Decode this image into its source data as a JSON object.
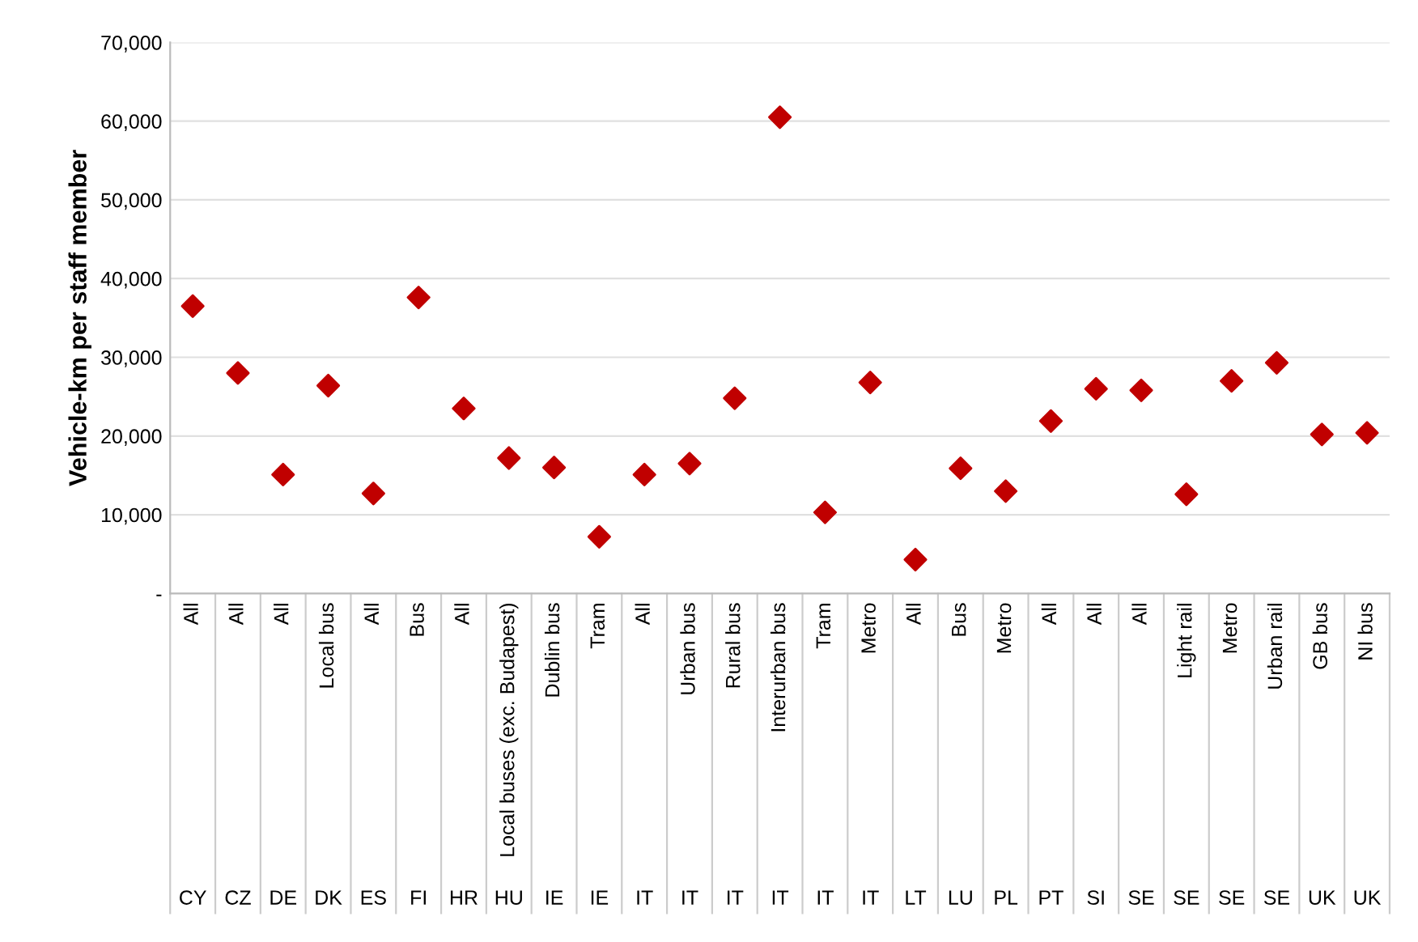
{
  "chart_data": {
    "type": "scatter",
    "ylabel": "Vehicle-km per staff member",
    "categories": [
      "All",
      "All",
      "All",
      "Local bus",
      "All",
      "Bus",
      "All",
      "Local buses (exc. Budapest)",
      "Dublin bus",
      "Tram",
      "All",
      "Urban bus",
      "Rural bus",
      "Interurban bus",
      "Tram",
      "Metro",
      "All",
      "Bus",
      "Metro",
      "All",
      "All",
      "All",
      "Light rail",
      "Metro",
      "Urban rail",
      "GB bus",
      "NI bus"
    ],
    "series": [
      {
        "color": "#c00000",
        "values": [
          36500,
          28000,
          15100,
          26400,
          12700,
          37600,
          23500,
          17200,
          16000,
          7200,
          15100,
          16500,
          24800,
          60500,
          10300,
          26800,
          4300,
          15900,
          13000,
          21900,
          26000,
          25800,
          12600,
          27000,
          29300,
          20200,
          20400
        ]
      }
    ],
    "annotations": [
      "CY",
      "CZ",
      "DE",
      "DK",
      "ES",
      "FI",
      "HR",
      "HU",
      "IE",
      "IE",
      "IT",
      "IT",
      "IT",
      "IT",
      "IT",
      "IT",
      "LT",
      "LU",
      "PL",
      "PT",
      "SI",
      "SE",
      "SE",
      "SE",
      "SE",
      "UK",
      "UK"
    ],
    "ylim": [
      0,
      70000
    ],
    "yticks": [
      {
        "value": 0,
        "label": "-"
      },
      {
        "value": 10000,
        "label": "10,000"
      },
      {
        "value": 20000,
        "label": "20,000"
      },
      {
        "value": 30000,
        "label": "30,000"
      },
      {
        "value": 40000,
        "label": "40,000"
      },
      {
        "value": 50000,
        "label": "50,000"
      },
      {
        "value": 60000,
        "label": "60,000"
      },
      {
        "value": 70000,
        "label": "70,000"
      }
    ],
    "grid": "y",
    "marker": "diamond"
  }
}
